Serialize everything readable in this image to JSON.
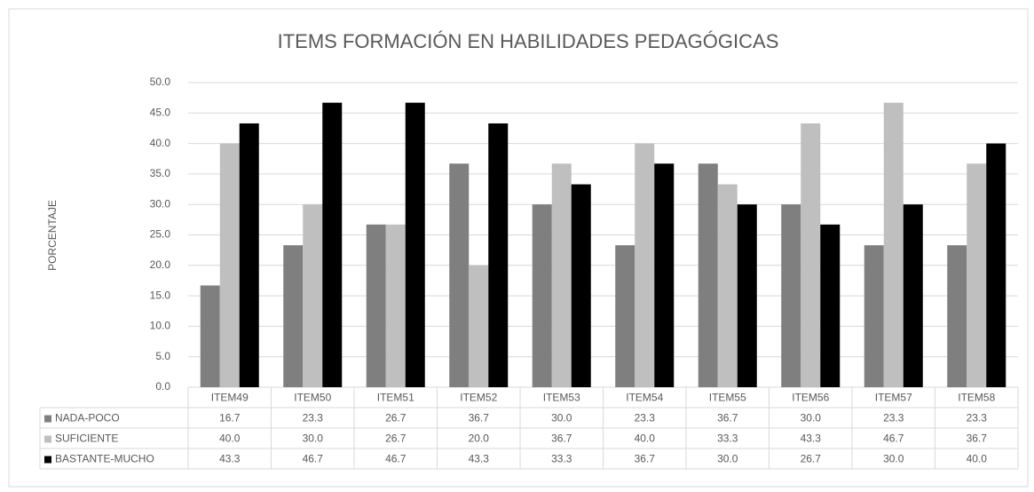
{
  "chart_data": {
    "type": "bar",
    "title": "ITEMS FORMACIÓN EN HABILIDADES PEDAGÓGICAS",
    "y_label": "PORCENTAJE",
    "categories": [
      "ITEM49",
      "ITEM50",
      "ITEM51",
      "ITEM52",
      "ITEM53",
      "ITEM54",
      "ITEM55",
      "ITEM56",
      "ITEM57",
      "ITEM58"
    ],
    "series": [
      {
        "name": "NADA-POCO",
        "color": "#7f7f7f",
        "values": [
          16.7,
          23.3,
          26.7,
          36.7,
          30.0,
          23.3,
          36.7,
          30.0,
          23.3,
          23.3
        ],
        "value_labels": [
          "16.7",
          "23.3",
          "26.7",
          "36.7",
          "30.0",
          "23.3",
          "36.7",
          "30.0",
          "23.3",
          "23.3"
        ]
      },
      {
        "name": "SUFICIENTE",
        "color": "#bfbfbf",
        "values": [
          40.0,
          30.0,
          26.7,
          20.0,
          36.7,
          40.0,
          33.3,
          43.3,
          46.7,
          36.7
        ],
        "value_labels": [
          "40.0",
          "30.0",
          "26.7",
          "20.0",
          "36.7",
          "40.0",
          "33.3",
          "43.3",
          "46.7",
          "36.7"
        ]
      },
      {
        "name": "BASTANTE-MUCHO",
        "color": "#000000",
        "values": [
          43.3,
          46.7,
          46.7,
          43.3,
          33.3,
          36.7,
          30.0,
          26.7,
          30.0,
          40.0
        ],
        "value_labels": [
          "43.3",
          "46.7",
          "46.7",
          "43.3",
          "33.3",
          "36.7",
          "30.0",
          "26.7",
          "30.0",
          "40.0"
        ]
      }
    ],
    "ylim": [
      0,
      50
    ],
    "yticks": [
      {
        "value": 0,
        "label": "0.0"
      },
      {
        "value": 5,
        "label": "5.0"
      },
      {
        "value": 10,
        "label": "10.0"
      },
      {
        "value": 15,
        "label": "15.0"
      },
      {
        "value": 20,
        "label": "20.0"
      },
      {
        "value": 25,
        "label": "25.0"
      },
      {
        "value": 30,
        "label": "30.0"
      },
      {
        "value": 35,
        "label": "35.0"
      },
      {
        "value": 40,
        "label": "40.0"
      },
      {
        "value": 45,
        "label": "45.0"
      },
      {
        "value": 50,
        "label": "50.0"
      }
    ],
    "grid": true,
    "data_table": true
  }
}
